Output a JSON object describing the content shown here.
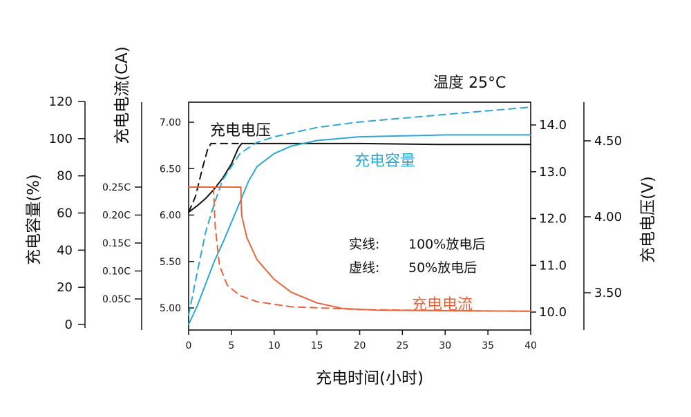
{
  "chart_data": {
    "type": "line",
    "temperature_label": "温度 25°C",
    "xlabel": "充电时间(小时)",
    "xlim": [
      0,
      40
    ],
    "x_ticks": [
      "0",
      "5",
      "10",
      "15",
      "20",
      "25",
      "30",
      "35",
      "40"
    ],
    "axes": {
      "capacity": {
        "label": "充电容量(%)",
        "range": [
          0,
          120
        ],
        "ticks": [
          "0",
          "20",
          "40",
          "60",
          "80",
          "100",
          "120"
        ]
      },
      "current": {
        "label": "充电电流(CA)",
        "range": [
          0,
          0.3
        ],
        "ticks": [
          "0.05C",
          "0.10C",
          "0.15C",
          "0.20C",
          "0.25C"
        ]
      },
      "voltage_inner": {
        "range": [
          4.8,
          7.2
        ],
        "ticks": [
          "5.00",
          "5.50",
          "6.00",
          "6.50",
          "7.00"
        ]
      },
      "voltage_14": {
        "range": [
          9.6,
          14.4
        ],
        "ticks": [
          "10.0",
          "11.0",
          "12.0",
          "13.0",
          "14.0"
        ]
      },
      "voltage_outer": {
        "label": "充电电压(V)",
        "range": [
          3.2,
          4.8
        ],
        "ticks": [
          "3.50",
          "4.00",
          "4.50"
        ]
      }
    },
    "legend": {
      "solid": {
        "prefix": "实线:",
        "text": "100%放电后"
      },
      "dashed": {
        "prefix": "虚线:",
        "text": "50%放电后"
      }
    },
    "series": [
      {
        "name": "充电电压",
        "axis": "voltage_inner",
        "color": "#111111",
        "style": "solid",
        "points": [
          [
            0,
            6.03
          ],
          [
            1,
            6.1
          ],
          [
            2,
            6.18
          ],
          [
            3,
            6.28
          ],
          [
            4,
            6.4
          ],
          [
            5,
            6.55
          ],
          [
            5.8,
            6.72
          ],
          [
            6.2,
            6.77
          ],
          [
            10,
            6.77
          ],
          [
            20,
            6.77
          ],
          [
            30,
            6.76
          ],
          [
            40,
            6.76
          ]
        ]
      },
      {
        "name": "充电电压",
        "axis": "voltage_inner",
        "color": "#111111",
        "style": "dashed",
        "points": [
          [
            0,
            6.03
          ],
          [
            0.8,
            6.2
          ],
          [
            1.6,
            6.5
          ],
          [
            2.2,
            6.7
          ],
          [
            2.6,
            6.77
          ],
          [
            5.8,
            6.77
          ]
        ]
      },
      {
        "name": "充电容量",
        "axis": "capacity",
        "color": "#2aa8d2",
        "style": "solid",
        "points": [
          [
            0,
            0
          ],
          [
            1,
            10
          ],
          [
            2,
            22
          ],
          [
            3,
            34
          ],
          [
            4,
            44
          ],
          [
            5,
            55
          ],
          [
            6,
            66
          ],
          [
            7,
            77
          ],
          [
            8,
            85
          ],
          [
            10,
            92
          ],
          [
            12,
            96
          ],
          [
            15,
            99
          ],
          [
            20,
            101
          ],
          [
            30,
            102
          ],
          [
            40,
            102
          ]
        ]
      },
      {
        "name": "充电容量",
        "axis": "capacity",
        "color": "#2aa8d2",
        "style": "dashed",
        "points": [
          [
            0,
            5
          ],
          [
            1,
            28
          ],
          [
            2,
            50
          ],
          [
            3,
            65
          ],
          [
            4,
            78
          ],
          [
            6,
            92
          ],
          [
            8,
            98
          ],
          [
            10,
            101
          ],
          [
            15,
            106
          ],
          [
            20,
            109
          ],
          [
            25,
            111
          ],
          [
            30,
            113
          ],
          [
            35,
            115
          ],
          [
            40,
            117
          ]
        ]
      },
      {
        "name": "充电电流",
        "axis": "current",
        "color": "#e8643a",
        "style": "solid",
        "points": [
          [
            0,
            0.25
          ],
          [
            6.1,
            0.25
          ],
          [
            6.2,
            0.2
          ],
          [
            6.8,
            0.16
          ],
          [
            8,
            0.12
          ],
          [
            10,
            0.085
          ],
          [
            12,
            0.062
          ],
          [
            15,
            0.043
          ],
          [
            18,
            0.033
          ],
          [
            22,
            0.03
          ],
          [
            30,
            0.029
          ],
          [
            40,
            0.028
          ]
        ]
      },
      {
        "name": "充电电流",
        "axis": "current",
        "color": "#e8643a",
        "style": "dashed",
        "points": [
          [
            2.9,
            0.25
          ],
          [
            3.1,
            0.18
          ],
          [
            3.6,
            0.11
          ],
          [
            4.5,
            0.075
          ],
          [
            6,
            0.056
          ],
          [
            8,
            0.045
          ],
          [
            12,
            0.036
          ],
          [
            20,
            0.031
          ],
          [
            30,
            0.029
          ],
          [
            40,
            0.028
          ]
        ]
      }
    ],
    "grid": false
  }
}
